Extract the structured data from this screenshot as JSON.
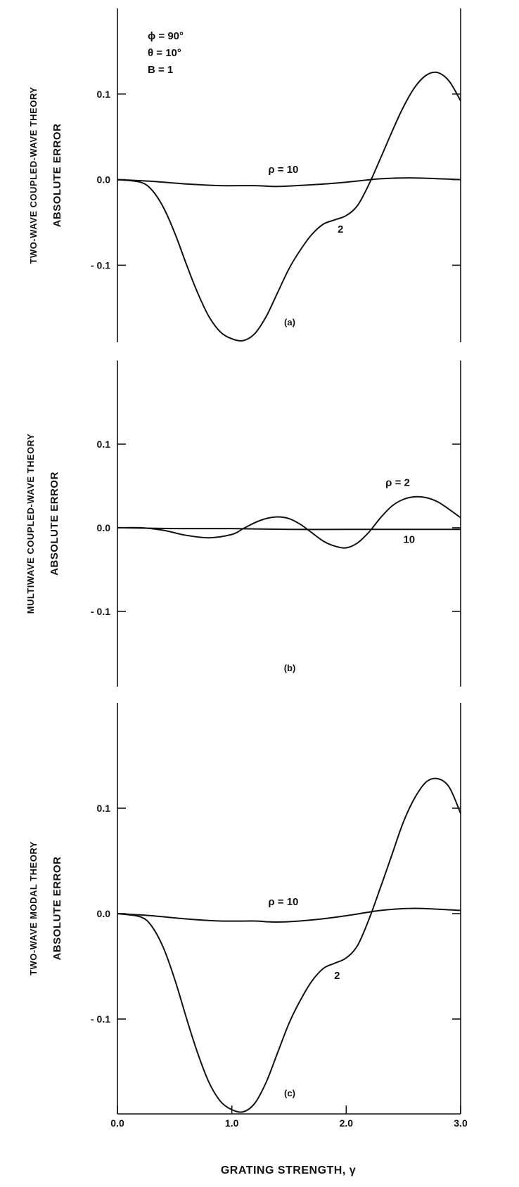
{
  "parameters": [
    "ϕ = 90°",
    "θ = 10°",
    "B = 1"
  ],
  "x_axis": {
    "title": "GRATING STRENGTH, γ",
    "ticks": [
      0.0,
      1.0,
      2.0,
      3.0
    ],
    "tick_labels": [
      "0.0",
      "1.0",
      "2.0",
      "3.0"
    ]
  },
  "y_tick_labels": [
    "0.1",
    "0.0",
    "- 0.1"
  ],
  "chart_data": [
    {
      "type": "line",
      "panel": "(a)",
      "ylabel_line1": "TWO-WAVE COUPLED-WAVE THEORY",
      "ylabel_line2": "ABSOLUTE ERROR",
      "xlim": [
        0,
        3
      ],
      "ylim": [
        -0.19,
        0.2
      ],
      "yticks": [
        -0.1,
        0.0,
        0.1
      ],
      "annotations": [
        {
          "text": "ρ = 10",
          "x": 1.45,
          "y": 0.008
        },
        {
          "text": "2",
          "x": 1.95,
          "y": -0.062
        }
      ],
      "series": [
        {
          "name": "ρ = 2",
          "x": [
            0,
            0.2,
            0.3,
            0.4,
            0.5,
            0.6,
            0.7,
            0.8,
            0.9,
            1.0,
            1.1,
            1.2,
            1.3,
            1.4,
            1.5,
            1.6,
            1.7,
            1.8,
            1.9,
            2.0,
            2.1,
            2.2,
            2.3,
            2.4,
            2.5,
            2.6,
            2.7,
            2.8,
            2.9,
            3.0
          ],
          "y": [
            0,
            -0.003,
            -0.012,
            -0.032,
            -0.062,
            -0.098,
            -0.132,
            -0.16,
            -0.178,
            -0.186,
            -0.188,
            -0.18,
            -0.16,
            -0.132,
            -0.104,
            -0.082,
            -0.064,
            -0.052,
            -0.047,
            -0.042,
            -0.03,
            -0.005,
            0.025,
            0.056,
            0.085,
            0.108,
            0.122,
            0.125,
            0.115,
            0.092
          ]
        },
        {
          "name": "ρ = 10",
          "x": [
            0,
            0.3,
            0.6,
            0.9,
            1.2,
            1.4,
            1.7,
            2.0,
            2.3,
            2.6,
            3.0
          ],
          "y": [
            0,
            -0.002,
            -0.005,
            -0.007,
            -0.007,
            -0.008,
            -0.006,
            -0.003,
            0.001,
            0.002,
            0.0
          ]
        }
      ]
    },
    {
      "type": "line",
      "panel": "(b)",
      "ylabel_line1": "MULTIWAVE COUPLED-WAVE THEORY",
      "ylabel_line2": "ABSOLUTE ERROR",
      "xlim": [
        0,
        3
      ],
      "ylim": [
        -0.19,
        0.2
      ],
      "yticks": [
        -0.1,
        0.0,
        0.1
      ],
      "annotations": [
        {
          "text": "ρ = 2",
          "x": 2.45,
          "y": 0.05
        },
        {
          "text": "10",
          "x": 2.55,
          "y": -0.018
        }
      ],
      "series": [
        {
          "name": "ρ = 2",
          "x": [
            0,
            0.2,
            0.4,
            0.6,
            0.8,
            1.0,
            1.1,
            1.2,
            1.3,
            1.4,
            1.5,
            1.6,
            1.7,
            1.8,
            1.9,
            2.0,
            2.1,
            2.2,
            2.3,
            2.4,
            2.5,
            2.6,
            2.7,
            2.8,
            2.9,
            3.0
          ],
          "y": [
            0,
            0.0,
            -0.003,
            -0.009,
            -0.012,
            -0.008,
            -0.001,
            0.006,
            0.011,
            0.013,
            0.011,
            0.004,
            -0.006,
            -0.016,
            -0.022,
            -0.024,
            -0.018,
            -0.005,
            0.012,
            0.026,
            0.034,
            0.037,
            0.036,
            0.031,
            0.022,
            0.012
          ]
        },
        {
          "name": "ρ = 10",
          "x": [
            0,
            0.5,
            1.0,
            1.5,
            2.0,
            2.5,
            3.0
          ],
          "y": [
            0,
            -0.001,
            -0.001,
            -0.002,
            -0.002,
            -0.002,
            -0.002
          ]
        }
      ]
    },
    {
      "type": "line",
      "panel": "(c)",
      "ylabel_line1": "TWO-WAVE MODAL THEORY",
      "ylabel_line2": "ABSOLUTE ERROR",
      "xlim": [
        0,
        3
      ],
      "ylim": [
        -0.19,
        0.2
      ],
      "yticks": [
        -0.1,
        0.0,
        0.1
      ],
      "annotations": [
        {
          "text": "ρ = 10",
          "x": 1.45,
          "y": 0.008
        },
        {
          "text": "2",
          "x": 1.92,
          "y": -0.062
        }
      ],
      "series": [
        {
          "name": "ρ = 2",
          "x": [
            0,
            0.2,
            0.3,
            0.4,
            0.5,
            0.6,
            0.7,
            0.8,
            0.9,
            1.0,
            1.1,
            1.2,
            1.3,
            1.4,
            1.5,
            1.6,
            1.7,
            1.8,
            1.9,
            2.0,
            2.1,
            2.2,
            2.3,
            2.4,
            2.5,
            2.6,
            2.7,
            2.8,
            2.9,
            3.0
          ],
          "y": [
            0,
            -0.003,
            -0.012,
            -0.032,
            -0.062,
            -0.098,
            -0.132,
            -0.16,
            -0.178,
            -0.186,
            -0.188,
            -0.18,
            -0.16,
            -0.132,
            -0.104,
            -0.082,
            -0.064,
            -0.052,
            -0.047,
            -0.042,
            -0.03,
            -0.005,
            0.025,
            0.056,
            0.087,
            0.11,
            0.125,
            0.128,
            0.12,
            0.095
          ]
        },
        {
          "name": "ρ = 10",
          "x": [
            0,
            0.3,
            0.6,
            0.9,
            1.2,
            1.4,
            1.7,
            2.0,
            2.3,
            2.6,
            3.0
          ],
          "y": [
            0,
            -0.002,
            -0.005,
            -0.007,
            -0.007,
            -0.008,
            -0.006,
            -0.002,
            0.003,
            0.005,
            0.003
          ]
        }
      ]
    }
  ]
}
